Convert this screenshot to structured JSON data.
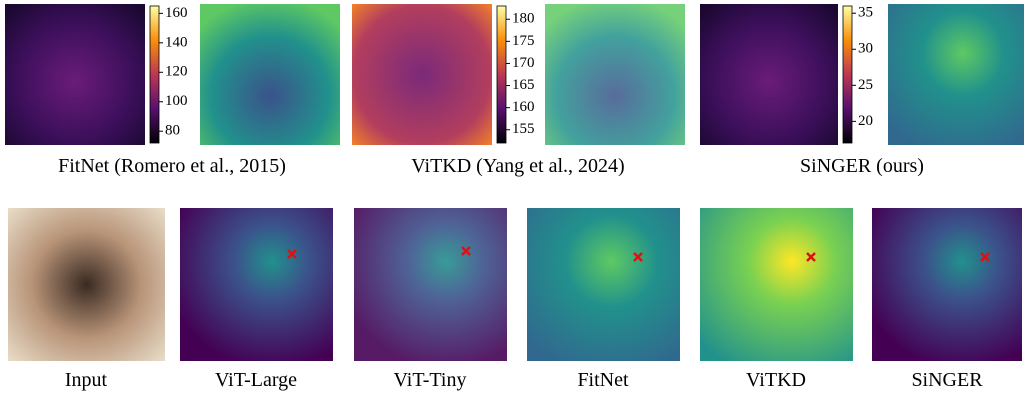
{
  "top_row": [
    {
      "caption": "FitNet (Romero et al., 2015)",
      "colorbar": {
        "ylim": [
          72,
          165
        ],
        "yticks": [
          80,
          100,
          120,
          140,
          160
        ]
      }
    },
    {
      "caption": "ViTKD (Yang et al., 2024)",
      "colorbar": {
        "ylim": [
          152,
          183
        ],
        "yticks": [
          155,
          160,
          165,
          170,
          175,
          180
        ]
      }
    },
    {
      "caption": "SiNGER (ours)",
      "colorbar": {
        "ylim": [
          17,
          36
        ],
        "yticks": [
          20,
          25,
          30,
          35
        ]
      }
    }
  ],
  "bottom_row": [
    "Input",
    "ViT-Large",
    "ViT-Tiny",
    "FitNet",
    "ViTKD",
    "SiNGER"
  ]
}
